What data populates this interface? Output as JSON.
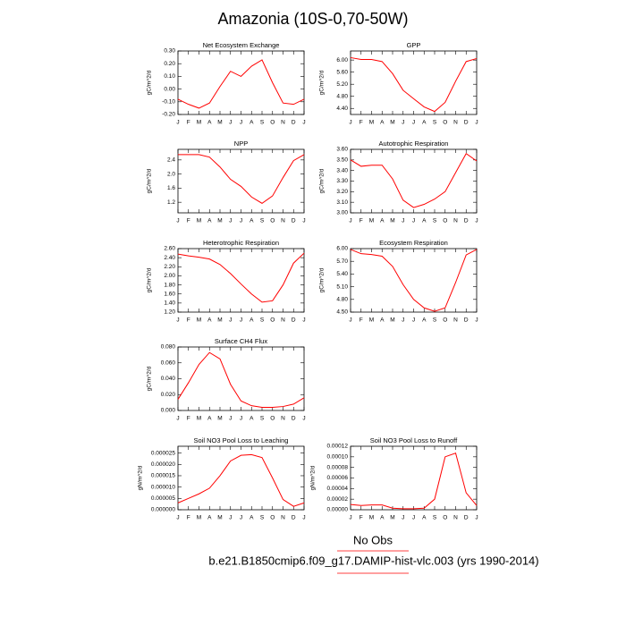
{
  "title": "Amazonia (10S-0,70-50W)",
  "notes": [
    "No Obs",
    "b.e21.B1850cmip6.f09_g17.DAMIP-hist-vlc.003 (yrs 1990-2014)"
  ],
  "chart_data": [
    {
      "type": "line",
      "title": "Net Ecosystem Exchange",
      "ylabel": "gC/m^2/d",
      "color": "#ff0000",
      "categories": [
        "J",
        "F",
        "M",
        "A",
        "M",
        "J",
        "J",
        "A",
        "S",
        "O",
        "N",
        "D",
        "J"
      ],
      "values": [
        -0.08,
        -0.12,
        -0.15,
        -0.11,
        0.02,
        0.14,
        0.1,
        0.18,
        0.23,
        0.05,
        -0.11,
        -0.12,
        -0.08
      ],
      "ylim": [
        -0.2,
        0.3
      ],
      "yticks": [
        {
          "value": -0.2,
          "label": "-0.20"
        },
        {
          "value": -0.1,
          "label": "-0.10"
        },
        {
          "value": 0,
          "label": "0.00"
        },
        {
          "value": 0.1,
          "label": "0.10"
        },
        {
          "value": 0.2,
          "label": "0.20"
        },
        {
          "value": 0.3,
          "label": "0.30"
        }
      ]
    },
    {
      "type": "line",
      "title": "GPP",
      "ylabel": "gC/m^2/d",
      "color": "#ff0000",
      "categories": [
        "J",
        "F",
        "M",
        "A",
        "M",
        "J",
        "J",
        "A",
        "S",
        "O",
        "N",
        "D",
        "J"
      ],
      "values": [
        6.08,
        6.02,
        6.02,
        5.95,
        5.55,
        5.0,
        4.72,
        4.45,
        4.3,
        4.6,
        5.3,
        5.95,
        6.05
      ],
      "ylim": [
        4.2,
        6.3
      ],
      "yticks": [
        {
          "value": 4.4,
          "label": "4.40"
        },
        {
          "value": 4.8,
          "label": "4.80"
        },
        {
          "value": 5.2,
          "label": "5.20"
        },
        {
          "value": 5.6,
          "label": "5.60"
        },
        {
          "value": 6.0,
          "label": "6.00"
        }
      ]
    },
    {
      "type": "line",
      "title": "NPP",
      "ylabel": "gC/m^2/d",
      "color": "#ff0000",
      "categories": [
        "J",
        "F",
        "M",
        "A",
        "M",
        "J",
        "J",
        "A",
        "S",
        "O",
        "N",
        "D",
        "J"
      ],
      "values": [
        2.55,
        2.55,
        2.55,
        2.48,
        2.2,
        1.85,
        1.65,
        1.35,
        1.17,
        1.38,
        1.9,
        2.38,
        2.55
      ],
      "ylim": [
        0.9,
        2.7
      ],
      "yticks": [
        1.2,
        1.6,
        {
          "value": 2.0,
          "label": "2.0"
        },
        2.4
      ]
    },
    {
      "type": "line",
      "title": "Autotrophic Respiration",
      "ylabel": "gC/m^2/d",
      "color": "#ff0000",
      "categories": [
        "J",
        "F",
        "M",
        "A",
        "M",
        "J",
        "J",
        "A",
        "S",
        "O",
        "N",
        "D",
        "J"
      ],
      "values": [
        3.5,
        3.44,
        3.45,
        3.45,
        3.32,
        3.12,
        3.05,
        3.08,
        3.13,
        3.2,
        3.38,
        3.56,
        3.49
      ],
      "ylim": [
        3.0,
        3.6
      ],
      "yticks": [
        {
          "value": 3.0,
          "label": "3.00"
        },
        {
          "value": 3.1,
          "label": "3.10"
        },
        {
          "value": 3.2,
          "label": "3.20"
        },
        {
          "value": 3.3,
          "label": "3.30"
        },
        {
          "value": 3.4,
          "label": "3.40"
        },
        {
          "value": 3.5,
          "label": "3.50"
        },
        {
          "value": 3.6,
          "label": "3.60"
        }
      ]
    },
    {
      "type": "line",
      "title": "Heterotrophic Respiration",
      "ylabel": "gC/m^2/d",
      "color": "#ff0000",
      "categories": [
        "J",
        "F",
        "M",
        "A",
        "M",
        "J",
        "J",
        "A",
        "S",
        "O",
        "N",
        "D",
        "J"
      ],
      "values": [
        2.48,
        2.44,
        2.41,
        2.37,
        2.25,
        2.05,
        1.82,
        1.6,
        1.42,
        1.45,
        1.8,
        2.28,
        2.5
      ],
      "ylim": [
        1.2,
        2.6
      ],
      "yticks": [
        {
          "value": 1.2,
          "label": "1.20"
        },
        {
          "value": 1.4,
          "label": "1.40"
        },
        {
          "value": 1.6,
          "label": "1.60"
        },
        {
          "value": 1.8,
          "label": "1.80"
        },
        {
          "value": 2.0,
          "label": "2.00"
        },
        {
          "value": 2.2,
          "label": "2.20"
        },
        {
          "value": 2.4,
          "label": "2.40"
        },
        {
          "value": 2.6,
          "label": "2.60"
        }
      ]
    },
    {
      "type": "line",
      "title": "Ecosystem Respiration",
      "ylabel": "gC/m^2/d",
      "color": "#ff0000",
      "categories": [
        "J",
        "F",
        "M",
        "A",
        "M",
        "J",
        "J",
        "A",
        "S",
        "O",
        "N",
        "D",
        "J"
      ],
      "values": [
        5.98,
        5.88,
        5.86,
        5.82,
        5.58,
        5.15,
        4.8,
        4.6,
        4.52,
        4.6,
        5.2,
        5.85,
        5.98
      ],
      "ylim": [
        4.5,
        6.0
      ],
      "yticks": [
        {
          "value": 4.5,
          "label": "4.50"
        },
        {
          "value": 4.8,
          "label": "4.80"
        },
        {
          "value": 5.1,
          "label": "5.10"
        },
        {
          "value": 5.4,
          "label": "5.40"
        },
        {
          "value": 5.7,
          "label": "5.70"
        },
        {
          "value": 6.0,
          "label": "6.00"
        }
      ]
    },
    {
      "type": "line",
      "title": "Surface CH4 Flux",
      "ylabel": "gC/m^2/d",
      "color": "#ff0000",
      "categories": [
        "J",
        "F",
        "M",
        "A",
        "M",
        "J",
        "J",
        "A",
        "S",
        "O",
        "N",
        "D",
        "J"
      ],
      "values": [
        0.014,
        0.035,
        0.058,
        0.073,
        0.065,
        0.033,
        0.012,
        0.006,
        0.004,
        0.004,
        0.005,
        0.008,
        0.016
      ],
      "ylim": [
        0,
        0.08
      ],
      "yticks": [
        {
          "value": 0,
          "label": "0.000"
        },
        {
          "value": 0.02,
          "label": "0.020"
        },
        {
          "value": 0.04,
          "label": "0.040"
        },
        {
          "value": 0.06,
          "label": "0.060"
        },
        {
          "value": 0.08,
          "label": "0.080"
        }
      ]
    },
    {
      "type": "line",
      "title": "Soil NO3 Pool Loss to Leaching",
      "ylabel": "gN/m^2/d",
      "color": "#ff0000",
      "categories": [
        "J",
        "F",
        "M",
        "A",
        "M",
        "J",
        "J",
        "A",
        "S",
        "O",
        "N",
        "D",
        "J"
      ],
      "values": [
        3e-06,
        5e-06,
        7e-06,
        9.5e-06,
        1.5e-05,
        2.15e-05,
        2.4e-05,
        2.43e-05,
        2.3e-05,
        1.4e-05,
        4.5e-06,
        1.5e-06,
        3e-06
      ],
      "ylim": [
        0,
        2.8e-05
      ],
      "yticks": [
        {
          "value": 0,
          "label": "0.000000"
        },
        {
          "value": 5e-06,
          "label": "0.000005"
        },
        {
          "value": 1e-05,
          "label": "0.000010"
        },
        {
          "value": 1.5e-05,
          "label": "0.000015"
        },
        {
          "value": 2e-05,
          "label": "0.000020"
        },
        {
          "value": 2.5e-05,
          "label": "0.000025"
        }
      ]
    },
    {
      "type": "line",
      "title": "Soil NO3 Pool Loss to Runoff",
      "ylabel": "gN/m^2/d",
      "color": "#ff0000",
      "categories": [
        "J",
        "F",
        "M",
        "A",
        "M",
        "J",
        "J",
        "A",
        "S",
        "O",
        "N",
        "D",
        "J"
      ],
      "values": [
        1e-05,
        8e-06,
        9e-06,
        9e-06,
        3e-06,
        2e-06,
        2e-06,
        3e-06,
        2e-05,
        0.0001,
        0.000107,
        3.2e-05,
        8e-06
      ],
      "ylim": [
        0,
        0.00012
      ],
      "yticks": [
        {
          "value": 0,
          "label": "0.00000"
        },
        {
          "value": 2e-05,
          "label": "0.00002"
        },
        {
          "value": 4e-05,
          "label": "0.00004"
        },
        {
          "value": 6e-05,
          "label": "0.00006"
        },
        {
          "value": 8e-05,
          "label": "0.00008"
        },
        {
          "value": 0.0001,
          "label": "0.00010"
        },
        {
          "value": 0.00012,
          "label": "0.00012"
        }
      ]
    }
  ]
}
